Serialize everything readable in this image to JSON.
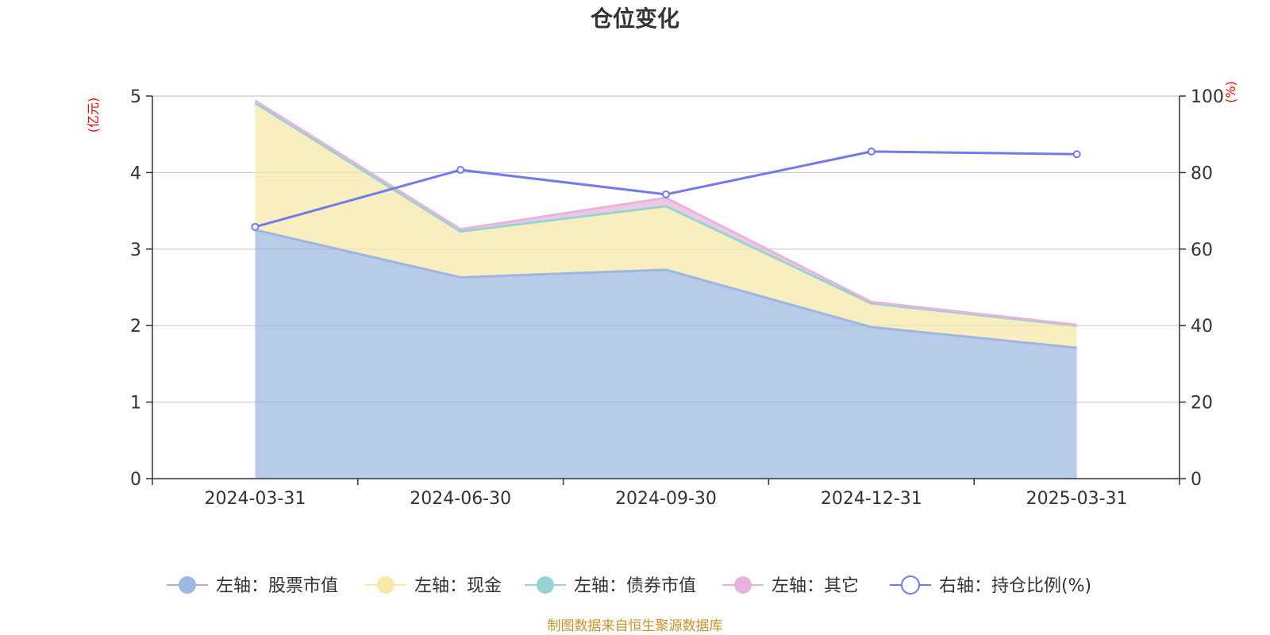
{
  "title": "仓位变化",
  "left_unit": "(亿元)",
  "right_unit": "(%)",
  "source_note": "制图数据来自恒生聚源数据库",
  "colors": {
    "stock": "#9db7e0",
    "cash": "#f6e8a6",
    "bond": "#96d3d3",
    "other": "#e8b4dc",
    "ratio": "#7479ee",
    "axis": "#333333",
    "grid": "#cccccc"
  },
  "chart_data": {
    "type": "area",
    "title": "仓位变化",
    "categories": [
      "2024-03-31",
      "2024-06-30",
      "2024-09-30",
      "2024-12-31",
      "2025-03-31"
    ],
    "y_left": {
      "label": "(亿元)",
      "min": 0,
      "max": 5,
      "ticks": [
        0,
        1,
        2,
        3,
        4,
        5
      ]
    },
    "y_right": {
      "label": "(%)",
      "min": 0,
      "max": 100,
      "ticks": [
        0,
        20,
        40,
        60,
        80,
        100
      ]
    },
    "series": [
      {
        "key": "stock",
        "name": "左轴：股票市值",
        "axis": "left",
        "kind": "stacked-area",
        "values": [
          3.25,
          2.63,
          2.73,
          1.98,
          1.71
        ]
      },
      {
        "key": "cash",
        "name": "左轴：现金",
        "axis": "left",
        "kind": "stacked-area",
        "values": [
          1.66,
          0.6,
          0.83,
          0.31,
          0.29
        ]
      },
      {
        "key": "bond",
        "name": "左轴：债券市值",
        "axis": "left",
        "kind": "stacked-area",
        "values": [
          0,
          0,
          0,
          0,
          0
        ]
      },
      {
        "key": "other",
        "name": "左轴：其它",
        "axis": "left",
        "kind": "stacked-area",
        "values": [
          0.03,
          0.03,
          0.11,
          0.02,
          0.01
        ]
      },
      {
        "key": "ratio",
        "name": "右轴：持仓比例(%)",
        "axis": "right",
        "kind": "line",
        "values": [
          65.8,
          80.7,
          74.3,
          85.5,
          84.8
        ]
      }
    ],
    "legend_position": "bottom-center"
  }
}
